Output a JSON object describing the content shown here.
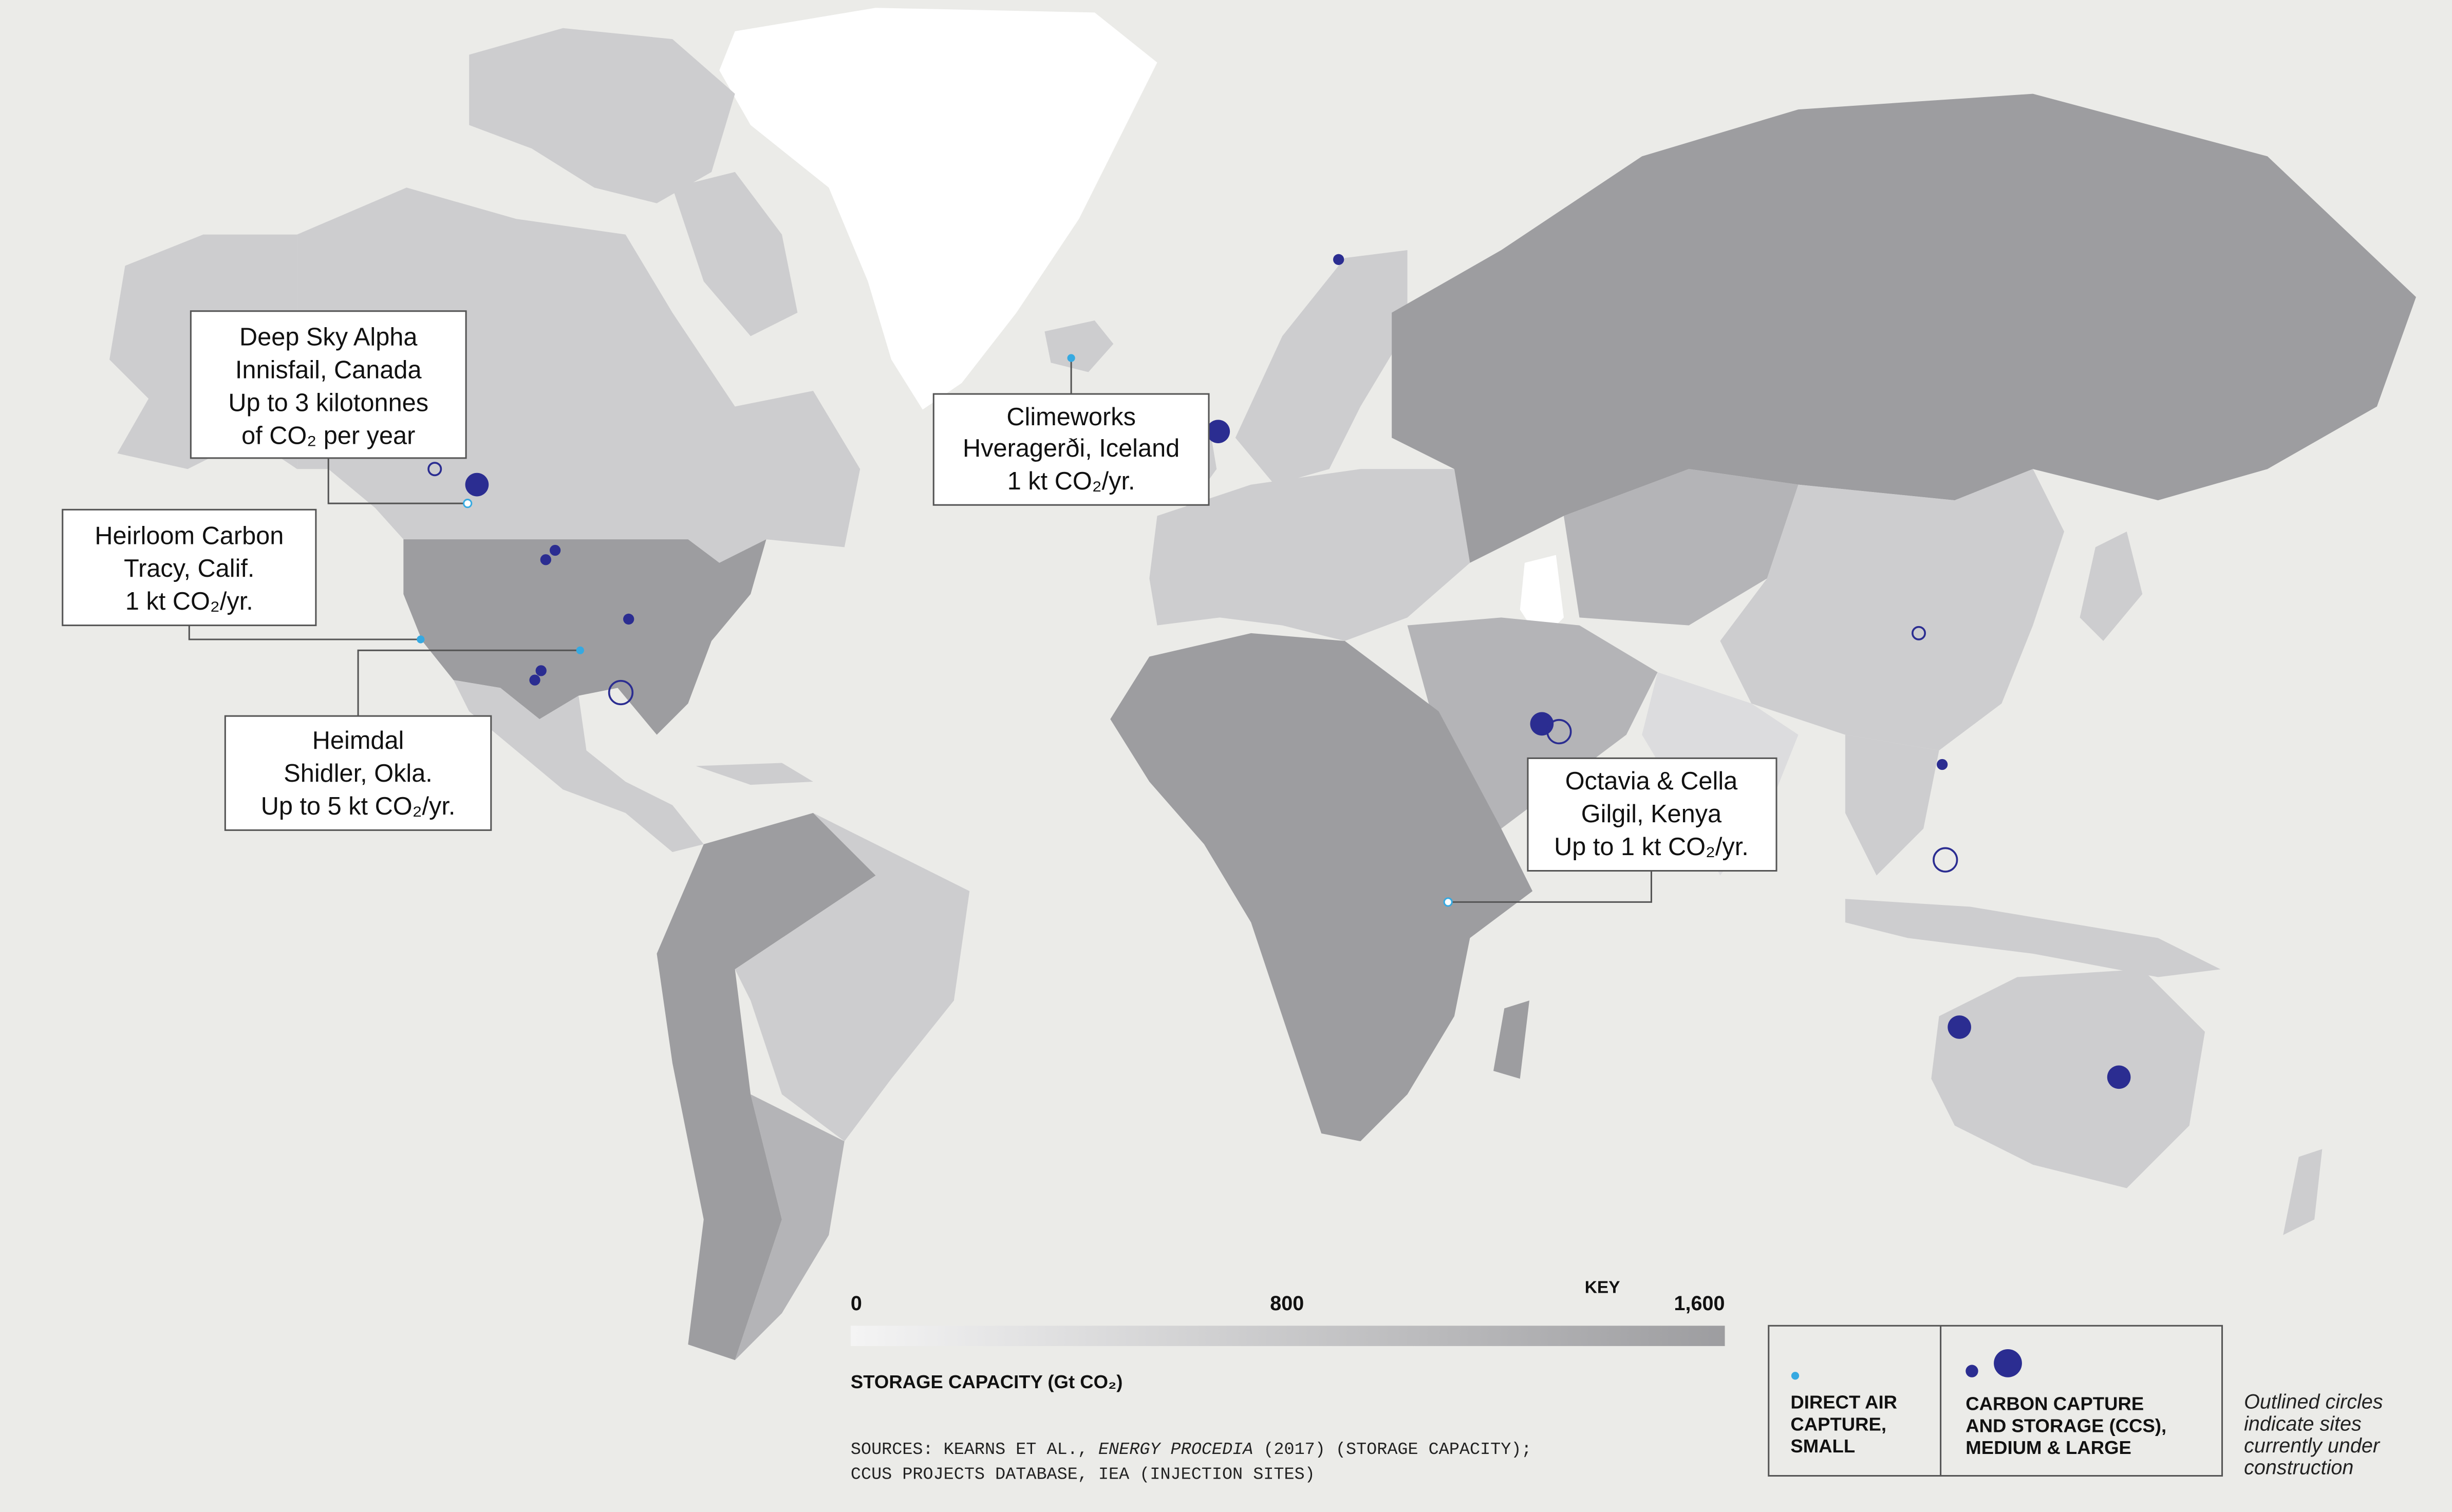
{
  "map": {
    "callouts": [
      {
        "id": "deep-sky",
        "lines": [
          "Deep Sky Alpha",
          "Innisfail, Canada",
          "Up to 3 kilotonnes",
          "of CO₂ per year"
        ]
      },
      {
        "id": "heirloom",
        "lines": [
          "Heirloom Carbon",
          "Tracy, Calif.",
          "1 kt CO₂/yr."
        ]
      },
      {
        "id": "heimdal",
        "lines": [
          "Heimdal",
          "Shidler, Okla.",
          "Up to 5 kt CO₂/yr."
        ]
      },
      {
        "id": "climeworks",
        "lines": [
          "Climeworks",
          "Hveragerði, Iceland",
          "1 kt CO₂/yr."
        ]
      },
      {
        "id": "octavia",
        "lines": [
          "Octavia & Cella",
          "Gilgil, Kenya",
          "Up to 1 kt CO₂/yr."
        ]
      }
    ],
    "storage_capacity_scale": {
      "title": "STORAGE CAPACITY (Gt CO₂)",
      "ticks": [
        "0",
        "800",
        "1,600"
      ],
      "min": 0,
      "max": 1600,
      "colors": [
        "#f4f4f4",
        "#9d9da0"
      ]
    },
    "key_label": "KEY",
    "legend": {
      "dac_label_lines": [
        "DIRECT AIR",
        "CAPTURE,",
        "SMALL"
      ],
      "ccs_label_lines": [
        "CARBON CAPTURE",
        "AND STORAGE (CCS),",
        "MEDIUM & LARGE"
      ],
      "note_lines": [
        "Outlined circles",
        "indicate sites",
        "currently under",
        "construction"
      ],
      "dac_color": "#36a9e1",
      "ccs_color": "#2b2d91"
    },
    "sources": {
      "line1_prefix": "SOURCES: KEARNS ET AL., ",
      "line1_italic": "ENERGY PROCEDIA",
      "line1_suffix": " (2017) (STORAGE CAPACITY);",
      "line2": "CCUS PROJECTS DATABASE, IEA (INJECTION SITES)"
    },
    "sites": {
      "dac": [
        "Innisfail, Canada",
        "Tracy, Calif.",
        "Shidler, Okla.",
        "Hveragerði, Iceland",
        "Gilgil, Kenya"
      ],
      "ccs_operating": 12,
      "ccs_under_construction": 5
    }
  }
}
